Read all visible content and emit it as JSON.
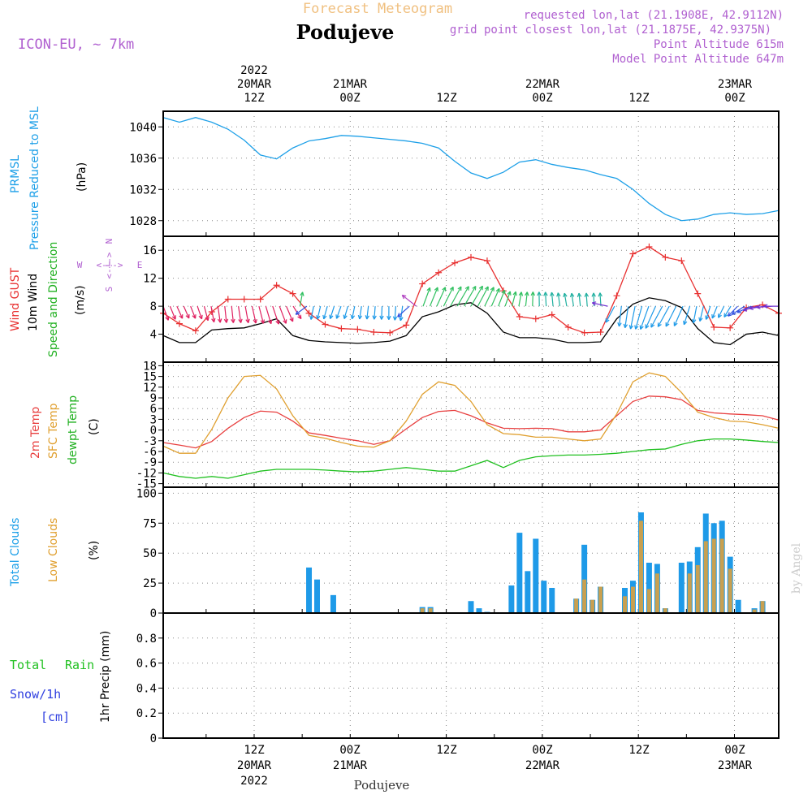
{
  "header": {
    "title": "Forecast Meteogram",
    "location": "Podujeve",
    "model": "ICON-EU, ~ 7km",
    "requested": "requested lon,lat (21.1908E, 42.9112N)",
    "gridpoint": "grid point closest lon,lat (21.1875E, 42.9375N)",
    "point_alt": "Point Altitude 615m",
    "model_alt": "Model Point Altitude 647m",
    "footer_location": "Podujeve",
    "credit": "by Angel"
  },
  "time_axis": {
    "hour_labels": [
      "12Z",
      "00Z",
      "12Z",
      "00Z",
      "12Z",
      "00Z"
    ],
    "date_labels": [
      "20MAR",
      "21MAR",
      "",
      "22MAR",
      "",
      "23MAR"
    ],
    "year_label": "2022",
    "hours": [
      12,
      24,
      36,
      48,
      60,
      72
    ]
  },
  "panel_labels": {
    "pressure": [
      "PRMSL",
      "Pressure Reduced to MSL",
      "(hPa)"
    ],
    "wind": [
      "Wind GUST",
      "10m Wind",
      "Speed and Direction",
      "(m/s)"
    ],
    "compass": [
      "N",
      "E",
      "S",
      "W",
      "<-!->"
    ],
    "temp": [
      "2m Temp",
      "SFC Temp",
      "dewpt Temp",
      "(C)"
    ],
    "clouds": [
      "Total Clouds",
      "Low Clouds",
      "(%)"
    ],
    "precip": [
      "Total",
      "Rain",
      "Snow/1h",
      "[cm]",
      "1hr Precip (mm)"
    ]
  },
  "colors": {
    "pressure": "#1ea0e8",
    "gust": "#e83030",
    "wind": "#000000",
    "temp2m": "#e84040",
    "sfc": "#e0a030",
    "dew": "#20c020",
    "total_cloud": "#1e9ae8",
    "low_cloud": "#c8a050",
    "header_purple": "#b060d0",
    "title_orange": "#f0c080"
  },
  "chart_data": [
    {
      "type": "line",
      "name": "pressure",
      "ylim": [
        1026,
        1042
      ],
      "yticks": [
        1028,
        1032,
        1036,
        1040
      ],
      "x": [
        0,
        2,
        4,
        6,
        8,
        10,
        12,
        14,
        16,
        18,
        20,
        22,
        24,
        26,
        28,
        30,
        32,
        34,
        36,
        38,
        40,
        42,
        44,
        46,
        48,
        50,
        52,
        54,
        56,
        58,
        60,
        62,
        64,
        66,
        68,
        70,
        72,
        74,
        76
      ],
      "series": [
        {
          "name": "PRMSL",
          "values": [
            1041.2,
            1040.6,
            1041.2,
            1040.6,
            1039.7,
            1038.3,
            1036.4,
            1035.9,
            1037.3,
            1038.2,
            1038.5,
            1038.9,
            1038.8,
            1038.6,
            1038.4,
            1038.2,
            1037.9,
            1037.3,
            1035.6,
            1034.1,
            1033.4,
            1034.2,
            1035.5,
            1035.8,
            1035.2,
            1034.8,
            1034.5,
            1033.9,
            1033.4,
            1032.0,
            1030.2,
            1028.8,
            1028.0,
            1028.2,
            1028.8,
            1029.0,
            1028.8,
            1028.9,
            1029.3
          ]
        }
      ]
    },
    {
      "type": "line",
      "name": "wind",
      "ylim": [
        0,
        18
      ],
      "yticks": [
        4,
        8,
        12,
        16
      ],
      "x": [
        0,
        2,
        4,
        6,
        8,
        10,
        12,
        14,
        16,
        18,
        20,
        22,
        24,
        26,
        28,
        30,
        32,
        34,
        36,
        38,
        40,
        42,
        44,
        46,
        48,
        50,
        52,
        54,
        56,
        58,
        60,
        62,
        64,
        66,
        68,
        70,
        72,
        74,
        76
      ],
      "series": [
        {
          "name": "Wind GUST",
          "values": [
            7.0,
            5.5,
            4.5,
            7.2,
            9.0,
            9.0,
            9.0,
            11.0,
            9.8,
            7.0,
            5.4,
            4.8,
            4.7,
            4.3,
            4.2,
            5.3,
            11.2,
            12.8,
            14.2,
            15.0,
            14.5,
            10.2,
            6.5,
            6.2,
            6.8,
            5.0,
            4.2,
            4.3,
            9.5,
            15.5,
            16.5,
            15.0,
            14.5,
            9.8,
            5.0,
            4.9,
            7.8,
            8.2,
            7.0
          ]
        },
        {
          "name": "10m Wind",
          "values": [
            3.8,
            2.8,
            2.8,
            4.6,
            4.8,
            4.9,
            5.5,
            6.2,
            3.8,
            3.1,
            2.9,
            2.8,
            2.7,
            2.8,
            3.0,
            3.8,
            6.5,
            7.2,
            8.2,
            8.5,
            7.0,
            4.3,
            3.5,
            3.5,
            3.3,
            2.8,
            2.8,
            2.9,
            6.2,
            8.3,
            9.2,
            8.8,
            7.8,
            4.8,
            2.8,
            2.5,
            4.0,
            4.3,
            3.8
          ]
        }
      ],
      "wind_dir_deg": [
        340,
        335,
        340,
        350,
        355,
        350,
        345,
        340,
        335,
        10,
        15,
        20,
        10,
        5,
        0,
        10,
        200,
        205,
        210,
        210,
        205,
        200,
        190,
        180,
        175,
        170,
        175,
        180,
        5,
        10,
        20,
        30,
        25,
        10,
        20,
        30,
        60,
        80,
        90
      ]
    },
    {
      "type": "line",
      "name": "temperature",
      "ylim": [
        -16,
        19
      ],
      "yticks": [
        -15,
        -12,
        -9,
        -6,
        -3,
        0,
        3,
        6,
        9,
        12,
        15,
        18
      ],
      "x": [
        0,
        2,
        4,
        6,
        8,
        10,
        12,
        14,
        16,
        18,
        20,
        22,
        24,
        26,
        28,
        30,
        32,
        34,
        36,
        38,
        40,
        42,
        44,
        46,
        48,
        50,
        52,
        54,
        56,
        58,
        60,
        62,
        64,
        66,
        68,
        70,
        72,
        74,
        76
      ],
      "series": [
        {
          "name": "2m Temp",
          "values": [
            -3.5,
            -4.2,
            -5.0,
            -3.2,
            0.5,
            3.5,
            5.3,
            5.0,
            2.5,
            -0.8,
            -1.5,
            -2.3,
            -3.0,
            -4.0,
            -3.0,
            0.3,
            3.5,
            5.2,
            5.5,
            4.0,
            2.0,
            0.5,
            0.4,
            0.5,
            0.4,
            -0.5,
            -0.5,
            0.0,
            4.0,
            8.0,
            9.5,
            9.3,
            8.5,
            5.5,
            4.8,
            4.5,
            4.3,
            4.0,
            2.8
          ]
        },
        {
          "name": "SFC Temp",
          "values": [
            -4.5,
            -6.5,
            -6.5,
            0.2,
            9.0,
            15.0,
            15.3,
            11.5,
            4.0,
            -1.5,
            -2.3,
            -3.5,
            -4.5,
            -4.8,
            -3.0,
            2.5,
            10.0,
            13.5,
            12.5,
            8.0,
            1.5,
            -1.0,
            -1.3,
            -2.0,
            -2.0,
            -2.5,
            -3.0,
            -2.5,
            4.5,
            13.5,
            16.0,
            15.0,
            10.5,
            5.0,
            3.5,
            2.5,
            2.3,
            1.5,
            0.5
          ]
        },
        {
          "name": "dewpt Temp",
          "values": [
            -12.0,
            -13.0,
            -13.5,
            -13.0,
            -13.5,
            -12.5,
            -11.5,
            -11.0,
            -11.0,
            -11.0,
            -11.2,
            -11.5,
            -11.7,
            -11.5,
            -11.0,
            -10.5,
            -11.0,
            -11.5,
            -11.5,
            -10.0,
            -8.5,
            -10.5,
            -8.5,
            -7.5,
            -7.2,
            -7.0,
            -7.0,
            -6.8,
            -6.5,
            -6.0,
            -5.5,
            -5.3,
            -4.0,
            -3.0,
            -2.5,
            -2.5,
            -2.8,
            -3.2,
            -3.5
          ]
        }
      ]
    },
    {
      "type": "bar",
      "name": "clouds",
      "ylim": [
        0,
        105
      ],
      "yticks": [
        0,
        25,
        50,
        75,
        100
      ],
      "x": [
        18,
        19,
        20,
        21,
        32,
        33,
        38,
        39,
        40,
        43,
        44,
        45,
        46,
        47,
        48,
        49,
        51,
        52,
        53,
        54,
        55,
        56,
        57,
        58,
        59,
        60,
        61,
        62,
        63,
        64,
        65,
        66,
        67,
        68,
        69,
        70,
        71,
        72,
        73,
        74,
        75,
        76
      ],
      "series": [
        {
          "name": "Total Clouds",
          "values": [
            38,
            28,
            0,
            15,
            5,
            5,
            10,
            4,
            1,
            23,
            67,
            35,
            62,
            27,
            21,
            0,
            12,
            57,
            11,
            22,
            0,
            0,
            21,
            27,
            84,
            42,
            41,
            4,
            0,
            42,
            43,
            55,
            83,
            75,
            77,
            47,
            11,
            0,
            4,
            10,
            0,
            0
          ]
        },
        {
          "name": "Low Clouds",
          "values": [
            0,
            0,
            0,
            0,
            4,
            4,
            0,
            0,
            0,
            0,
            0,
            0,
            0,
            0,
            0,
            0,
            12,
            28,
            11,
            22,
            0,
            0,
            14,
            22,
            77,
            20,
            33,
            4,
            0,
            0,
            33,
            40,
            60,
            62,
            62,
            37,
            0,
            0,
            3,
            10,
            0,
            0
          ]
        }
      ]
    },
    {
      "type": "bar",
      "name": "precipitation",
      "ylim": [
        0,
        1.0
      ],
      "yticks": [
        0,
        0.2,
        0.4,
        0.6,
        0.8
      ],
      "series": [
        {
          "name": "Total",
          "values": []
        },
        {
          "name": "Rain",
          "values": []
        },
        {
          "name": "Snow/1h",
          "values": []
        }
      ]
    }
  ]
}
